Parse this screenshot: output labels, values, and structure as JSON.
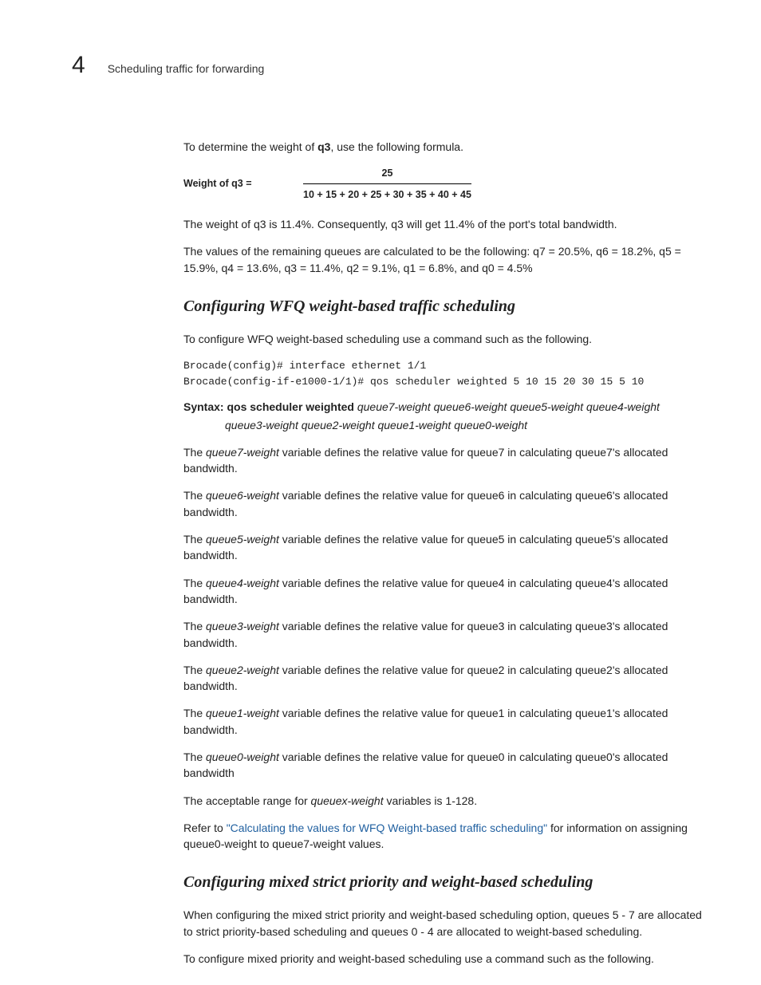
{
  "header": {
    "chapter_number": "4",
    "title": "Scheduling traffic for forwarding"
  },
  "intro": {
    "para1_pre": "To determine the weight of ",
    "para1_bold": "q3",
    "para1_post": ", use the following formula."
  },
  "formula": {
    "left": "Weight of q3 =",
    "numerator": "25",
    "denominator": "10 + 15 + 20 + 25 + 30 + 35 + 40 + 45"
  },
  "result_paras": {
    "p1": "The weight of q3 is 11.4%. Consequently, q3 will get 11.4% of the port's total bandwidth.",
    "p2": "The values of the remaining queues are calculated to be the following: q7 = 20.5%, q6 = 18.2%, q5 = 15.9%, q4 = 13.6%, q3 = 11.4%, q2 = 9.1%, q1 = 6.8%, and q0 = 4.5%"
  },
  "section1": {
    "heading": "Configuring WFQ weight-based traffic scheduling",
    "intro": "To configure WFQ weight-based scheduling use a command such as the following.",
    "code": "Brocade(config)# interface ethernet 1/1\nBrocade(config-if-e1000-1/1)# qos scheduler weighted 5 10 15 20 30 15 5 10",
    "syntax_label": "Syntax:  ",
    "syntax_cmd": "qos scheduler weighted",
    "syntax_args": " queue7-weight queue6-weight queue5-weight queue4-weight",
    "syntax_args_line2": "queue3-weight queue2-weight queue1-weight queue0-weight",
    "vars": [
      {
        "pre": "The ",
        "name": "queue7-weight",
        "post": " variable defines the relative value for queue7 in calculating queue7's allocated bandwidth."
      },
      {
        "pre": "The ",
        "name": "queue6-weight",
        "post": " variable defines the relative value for queue6 in calculating queue6's allocated bandwidth."
      },
      {
        "pre": "The ",
        "name": "queue5-weight",
        "post": " variable defines the relative value for queue5 in calculating queue5's allocated bandwidth."
      },
      {
        "pre": "The ",
        "name": "queue4-weight",
        "post": " variable defines the relative value for queue4 in calculating queue4's allocated bandwidth."
      },
      {
        "pre": "The ",
        "name": "queue3-weight",
        "post": " variable defines the relative value for queue3 in calculating queue3's allocated bandwidth."
      },
      {
        "pre": "The ",
        "name": "queue2-weight",
        "post": " variable defines the relative value for queue2 in calculating queue2's allocated bandwidth."
      },
      {
        "pre": "The ",
        "name": "queue1-weight",
        "post": " variable defines the relative value for queue1 in calculating queue1's allocated bandwidth."
      },
      {
        "pre": "The ",
        "name": "queue0-weight",
        "post": " variable defines the relative value for queue0 in calculating queue0's allocated bandwidth"
      }
    ],
    "range_pre": "The acceptable range for ",
    "range_var": "queuex-weight",
    "range_post": " variables is 1-128.",
    "refer_pre": "Refer to ",
    "refer_link": "\"Calculating the values for WFQ Weight-based traffic scheduling\"",
    "refer_post": " for information on assigning queue0-weight to queue7-weight values."
  },
  "section2": {
    "heading": "Configuring mixed strict priority and weight-based scheduling",
    "para1": "When configuring the mixed strict priority and weight-based scheduling option, queues 5 - 7 are allocated to strict priority-based scheduling and queues 0 - 4 are allocated to weight-based scheduling.",
    "para2": "To configure mixed priority and weight-based scheduling use a command such as the following."
  }
}
